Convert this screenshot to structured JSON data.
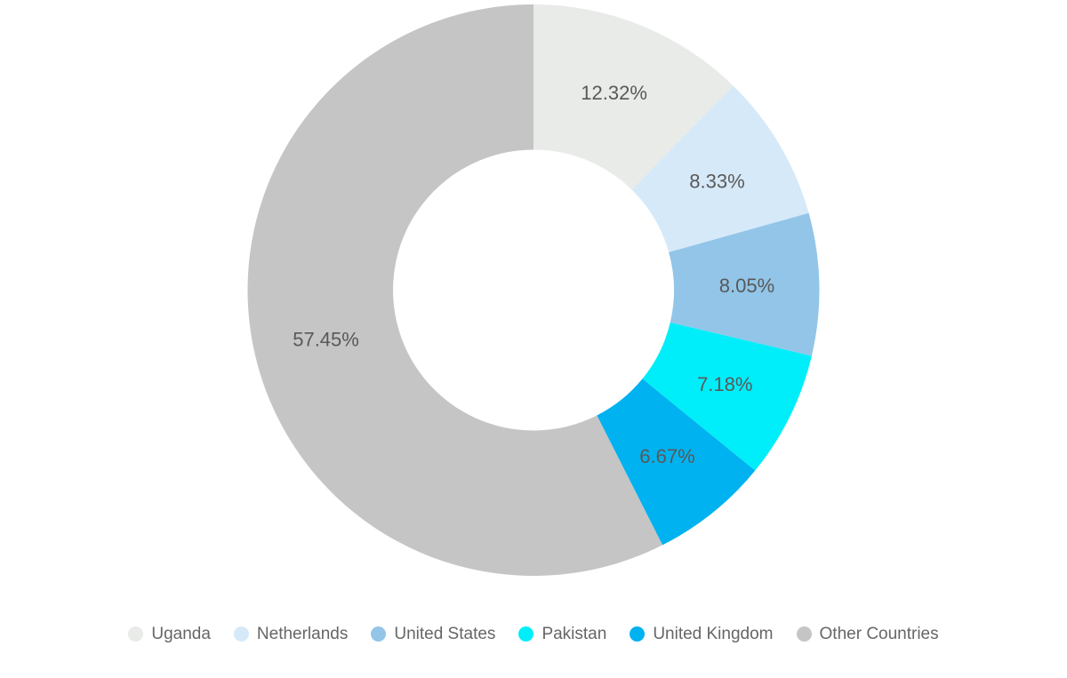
{
  "chart_data": {
    "type": "pie",
    "subtype": "donut",
    "title": "",
    "start_angle_deg": 0,
    "direction": "clockwise",
    "inner_radius_ratio": 0.49,
    "legend_position": "bottom",
    "background_color": "#ffffff",
    "label_color": "#595959",
    "legend_text_color": "#666666",
    "series": [
      {
        "name": "Uganda",
        "value": 12.32,
        "label": "12.32%",
        "color": "#e8ebe8"
      },
      {
        "name": "Netherlands",
        "value": 8.33,
        "label": "8.33%",
        "color": "#d6e9f8"
      },
      {
        "name": "United States",
        "value": 8.05,
        "label": "8.05%",
        "color": "#92c5e8"
      },
      {
        "name": "Pakistan",
        "value": 7.18,
        "label": "7.18%",
        "color": "#00eefa"
      },
      {
        "name": "United Kingdom",
        "value": 6.67,
        "label": "6.67%",
        "color": "#00b2f0"
      },
      {
        "name": "Other Countries",
        "value": 57.45,
        "label": "57.45%",
        "color": "#c5c5c5"
      }
    ]
  }
}
